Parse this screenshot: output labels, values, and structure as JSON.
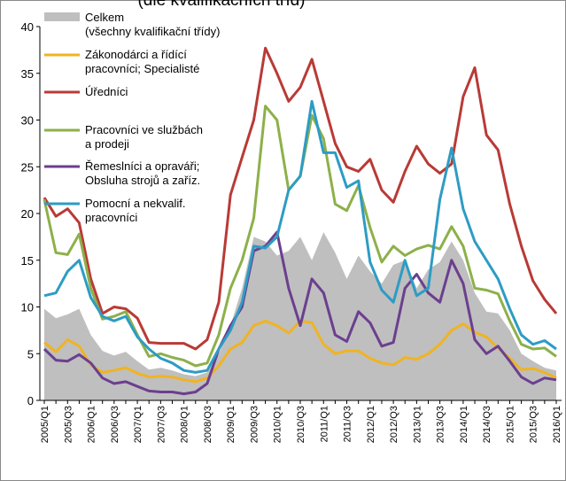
{
  "chart_data": {
    "type": "line",
    "title": "(dle kvalifikačních tříd)",
    "categories": [
      "2005/Q1",
      null,
      "2005/Q3",
      null,
      "2006/Q1",
      null,
      "2006/Q3",
      null,
      "2007/Q1",
      null,
      "2007/Q3",
      null,
      "2008/Q1",
      null,
      "2008/Q3",
      null,
      "2009/Q1",
      null,
      "2009/Q3",
      null,
      "2010/Q1",
      null,
      "2010/Q3",
      null,
      "2011/Q1",
      null,
      "2011/Q3",
      null,
      "2012/Q1",
      null,
      "2012/Q3",
      null,
      "2013/Q1",
      null,
      "2013/Q3",
      null,
      "2014/Q1",
      null,
      "2014/Q3",
      null,
      "2015/Q1",
      null,
      "2015/Q3",
      null,
      "2016/Q1"
    ],
    "ylim": [
      0,
      40
    ],
    "yticks": [
      0,
      5,
      10,
      15,
      20,
      25,
      30,
      35,
      40
    ],
    "series": [
      {
        "name": "Celkem\n(všechny kvalifikační třídy)",
        "color": "#bfbfbf",
        "style": "area",
        "values": [
          9.8,
          8.8,
          9.2,
          9.8,
          7,
          5.3,
          4.8,
          5.2,
          4.2,
          3.3,
          3.5,
          3.2,
          2.8,
          2.6,
          3,
          5,
          8,
          12,
          17.5,
          17,
          15.5,
          16,
          17.5,
          15,
          18,
          15.8,
          13,
          15.5,
          13.8,
          12.5,
          14.5,
          15,
          12,
          14,
          14.8,
          17,
          15,
          11.5,
          9.5,
          9.3,
          7.5,
          5,
          4.2,
          3.5,
          3.2
        ]
      },
      {
        "name": "Zákonodárci a řídící\npracovníci; Specialisté",
        "color": "#f0b323",
        "values": [
          6.2,
          5.2,
          6.5,
          5.8,
          3.8,
          3,
          3.2,
          3.5,
          2.9,
          2.5,
          2.6,
          2.5,
          2.2,
          2,
          2.4,
          3.7,
          5.5,
          6.2,
          8,
          8.5,
          8,
          7.2,
          8.5,
          8.3,
          6,
          5,
          5.3,
          5.3,
          4.5,
          4,
          3.8,
          4.6,
          4.4,
          5,
          6,
          7.5,
          8.2,
          7.3,
          6.8,
          5.6,
          4.5,
          3.3,
          3.4,
          3,
          2.4
        ]
      },
      {
        "name": "Úředníci",
        "color": "#b93a36",
        "values": [
          21.7,
          19.7,
          20.5,
          19,
          13,
          9.3,
          10,
          9.8,
          8.8,
          6.2,
          6.1,
          6.1,
          6.1,
          5.5,
          6.5,
          10.5,
          22,
          26,
          30,
          37.7,
          35,
          32,
          33.5,
          36.5,
          32,
          27.5,
          25,
          24.5,
          25.8,
          22.5,
          21.2,
          24.5,
          27.2,
          25.3,
          24.3,
          25.3,
          32.5,
          35.6,
          28.4,
          26.8,
          21,
          16.5,
          12.8,
          10.8,
          9.3
        ]
      },
      {
        "name": "Pracovníci ve službách\na prodeji",
        "color": "#8db04a",
        "values": [
          21.5,
          15.8,
          15.6,
          17.8,
          12,
          8.7,
          9,
          9.5,
          7,
          4.7,
          5,
          4.6,
          4.3,
          3.7,
          4,
          7,
          12,
          15,
          19.5,
          31.5,
          30,
          22.5,
          24,
          30.5,
          28,
          21,
          20.3,
          23,
          18.5,
          14.8,
          16.5,
          15.5,
          16.2,
          16.6,
          16.2,
          18.6,
          16.5,
          12,
          11.8,
          11.4,
          8.5,
          6,
          5.5,
          5.6,
          4.7
        ]
      },
      {
        "name": "Řemeslníci a opraváři;\nObsluha strojů a zaříz.",
        "color": "#6b3f8f",
        "values": [
          5.5,
          4.3,
          4.2,
          4.9,
          4,
          2.4,
          1.8,
          2,
          1.5,
          1,
          0.9,
          0.9,
          0.7,
          0.9,
          1.8,
          5.5,
          8,
          10,
          16,
          16.5,
          18,
          12,
          8,
          13,
          11.5,
          7,
          6.3,
          9.5,
          8.3,
          5.8,
          6.2,
          12,
          13.5,
          11.5,
          10.5,
          15,
          12.5,
          6.5,
          5,
          5.8,
          4.2,
          2.5,
          1.8,
          2.4,
          2.2
        ]
      },
      {
        "name": "Pomocní a nekvalif.\npracovníci",
        "color": "#2d9cc4",
        "values": [
          11.2,
          11.5,
          13.8,
          15,
          11,
          9,
          8.5,
          9,
          6.8,
          5.5,
          4.5,
          4,
          3.2,
          3,
          3.2,
          5.5,
          7.5,
          10.5,
          16.5,
          16.3,
          17.5,
          22.5,
          24,
          32,
          26.5,
          26.5,
          22.8,
          23.5,
          14.8,
          11.8,
          10.5,
          15,
          11.2,
          12,
          21.5,
          27,
          20.5,
          17,
          15,
          13,
          9.8,
          7,
          6,
          6.4,
          5.5
        ]
      }
    ]
  }
}
